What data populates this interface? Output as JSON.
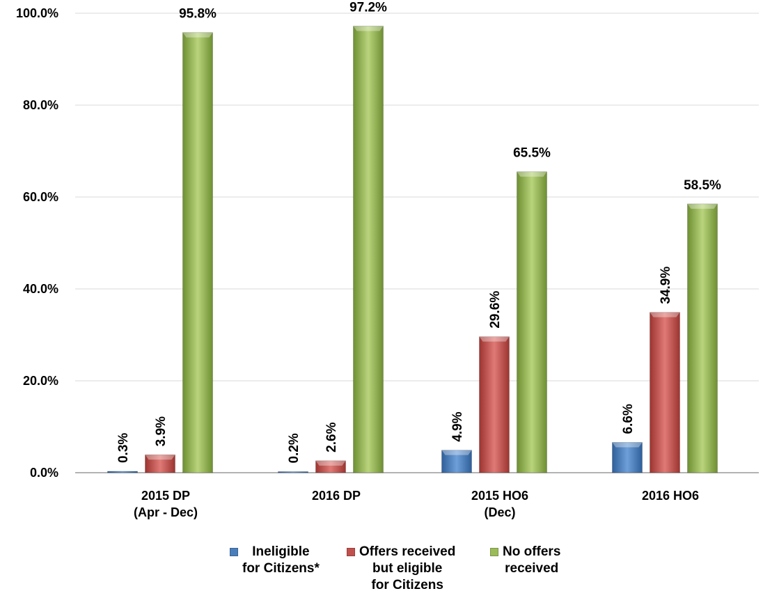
{
  "chart_data": {
    "type": "bar",
    "categories": [
      "2015 DP\n(Apr - Dec)",
      "2016 DP",
      "2015 HO6\n(Dec)",
      "2016 HO6"
    ],
    "series": [
      {
        "name": "Ineligible\nfor Citizens*",
        "color": "#4a7ebb",
        "values": [
          0.3,
          0.2,
          4.9,
          6.6
        ],
        "labels": [
          "0.3%",
          "0.2%",
          "4.9%",
          "6.6%"
        ]
      },
      {
        "name": "Offers received\nbut eligible\nfor Citizens",
        "color": "#c0504d",
        "values": [
          3.9,
          2.6,
          29.6,
          34.9
        ],
        "labels": [
          "3.9%",
          "2.6%",
          "29.6%",
          "34.9%"
        ]
      },
      {
        "name": "No offers\nreceived",
        "color": "#9bbb59",
        "values": [
          95.8,
          97.2,
          65.5,
          58.5
        ],
        "labels": [
          "95.8%",
          "97.2%",
          "65.5%",
          "58.5%"
        ]
      }
    ],
    "yticks": [
      "0.0%",
      "20.0%",
      "40.0%",
      "60.0%",
      "80.0%",
      "100.0%"
    ],
    "ylim": [
      0,
      100
    ],
    "grid": true,
    "legend_position": "bottom",
    "label_orientation": {
      "small_bars": "vertical",
      "large_bars": "horizontal"
    }
  }
}
